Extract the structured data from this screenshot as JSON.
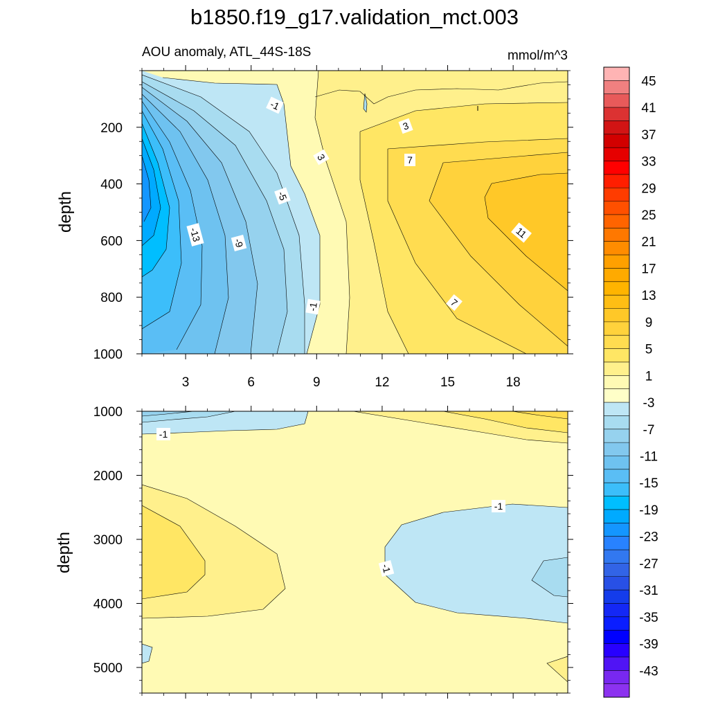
{
  "figure": {
    "title": "b1850.f19_g17.validation_mct.003",
    "left_string": "AOU anomaly, ATL_44S-18S",
    "right_string": "mmol/m^3"
  },
  "chart_data": {
    "type": "contour",
    "title": "b1850.f19_g17.validation_mct.003",
    "variable": "AOU anomaly, ATL_44S-18S",
    "units": "mmol/m^3",
    "panels": [
      {
        "name": "upper",
        "ylabel": "depth",
        "xlim": [
          1,
          20.5
        ],
        "ylim": [
          1000,
          0
        ],
        "xticks": [
          3,
          6,
          9,
          12,
          15,
          18
        ],
        "xtick_labels": [
          "3",
          "6",
          "9",
          "12",
          "15",
          "18"
        ],
        "yticks": [
          200,
          400,
          600,
          800,
          1000
        ],
        "ytick_labels": [
          "200",
          "400",
          "600",
          "800",
          "1000"
        ],
        "contour_labels": [
          "-1",
          "-1",
          "3",
          "3",
          "7",
          "-5",
          "-13",
          "-9",
          "11",
          "-1",
          "7"
        ],
        "features": "negative anomaly (min about -19) on the western side near 300-400 m; positive anomaly (max about 11-13) on the eastern side near 400-500 m"
      },
      {
        "name": "lower",
        "ylabel": "depth",
        "xlim": [
          1,
          20.5
        ],
        "ylim": [
          5400,
          1000
        ],
        "yticks": [
          1000,
          2000,
          3000,
          4000,
          5000
        ],
        "ytick_labels": [
          "1000",
          "2000",
          "3000",
          "4000",
          "5000"
        ],
        "contour_labels": [
          "-1",
          "-1",
          "-1"
        ],
        "features": "weak anomalies between -3 and 5; positive lobe in the west near 3000-3500 m; negative lobe in the east near 3000-3500 m"
      }
    ],
    "colorbar": {
      "levels": [
        -45,
        -43,
        -41,
        -39,
        -37,
        -35,
        -33,
        -31,
        -29,
        -27,
        -25,
        -23,
        -21,
        -19,
        -17,
        -15,
        -13,
        -11,
        -9,
        -7,
        -5,
        -3,
        -1,
        1,
        3,
        5,
        7,
        9,
        11,
        13,
        15,
        17,
        19,
        21,
        23,
        25,
        27,
        29,
        31,
        33,
        35,
        37,
        39,
        41,
        43,
        45
      ],
      "tick_labels": [
        "45",
        "41",
        "37",
        "33",
        "29",
        "25",
        "21",
        "17",
        "13",
        "9",
        "5",
        "1",
        "-3",
        "-7",
        "-11",
        "-15",
        "-19",
        "-23",
        "-27",
        "-31",
        "-35",
        "-39",
        "-43"
      ],
      "colors": [
        "#FFB4B4",
        "#F08080",
        "#E85A5A",
        "#DC3232",
        "#D21414",
        "#D20000",
        "#E60000",
        "#FF0000",
        "#FF1E00",
        "#FF3C00",
        "#FF5000",
        "#FF6400",
        "#FF7800",
        "#FF8C00",
        "#FFA000",
        "#FFAA00",
        "#FFB400",
        "#FFBE14",
        "#FFC828",
        "#FFD23C",
        "#FFDC50",
        "#FFE664",
        "#FFF08C",
        "#FFFAB4",
        "#FFFFC8",
        "#BEE6F5",
        "#A8DCF0",
        "#96D2EE",
        "#82C8EE",
        "#6EC2F0",
        "#5ABEF5",
        "#3CBEFA",
        "#00BEFF",
        "#00AAFF",
        "#1496FF",
        "#2882FF",
        "#3278F0",
        "#3264E6",
        "#2850E6",
        "#143CEB",
        "#1428F5",
        "#0A1EFF",
        "#0000FF",
        "#2800FF",
        "#5014F5",
        "#7828F0",
        "#8C32F0"
      ]
    }
  }
}
